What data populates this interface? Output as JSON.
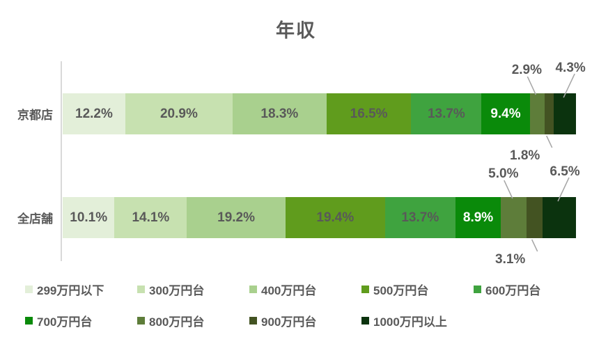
{
  "title": "年収",
  "chart_data": {
    "type": "bar",
    "stacked": true,
    "orientation": "horizontal",
    "title": "年収",
    "categories": [
      "京都店",
      "全店舗"
    ],
    "series": [
      {
        "name": "299万円以下",
        "color": "#e3efd9",
        "values": [
          12.2,
          10.1
        ]
      },
      {
        "name": "300万円台",
        "color": "#c7e1b0",
        "values": [
          20.9,
          14.1
        ]
      },
      {
        "name": "400万円台",
        "color": "#a9d08e",
        "values": [
          18.3,
          19.2
        ]
      },
      {
        "name": "500万円台",
        "color": "#609c1d",
        "values": [
          16.5,
          19.4
        ]
      },
      {
        "name": "600万円台",
        "color": "#3fa33f",
        "values": [
          13.7,
          13.7
        ]
      },
      {
        "name": "700万円台",
        "color": "#0a8a0a",
        "values": [
          9.4,
          8.9
        ]
      },
      {
        "name": "800万円台",
        "color": "#5e7d3a",
        "values": [
          2.9,
          5.0
        ]
      },
      {
        "name": "900万円台",
        "color": "#435322",
        "values": [
          1.8,
          3.1
        ]
      },
      {
        "name": "1000万円以上",
        "color": "#0b330e",
        "values": [
          4.3,
          6.5
        ]
      }
    ],
    "value_format": "percent",
    "value_suffix": "%",
    "xlim": [
      0,
      100
    ],
    "legend_position": "bottom",
    "grid": false
  },
  "style_colors": {
    "title_text": "#595959",
    "label_text": "#595959",
    "label_text_on_dark": "#ffffff",
    "axis_line": "#d9d9d9",
    "leader_line": "#a6a6a6"
  }
}
